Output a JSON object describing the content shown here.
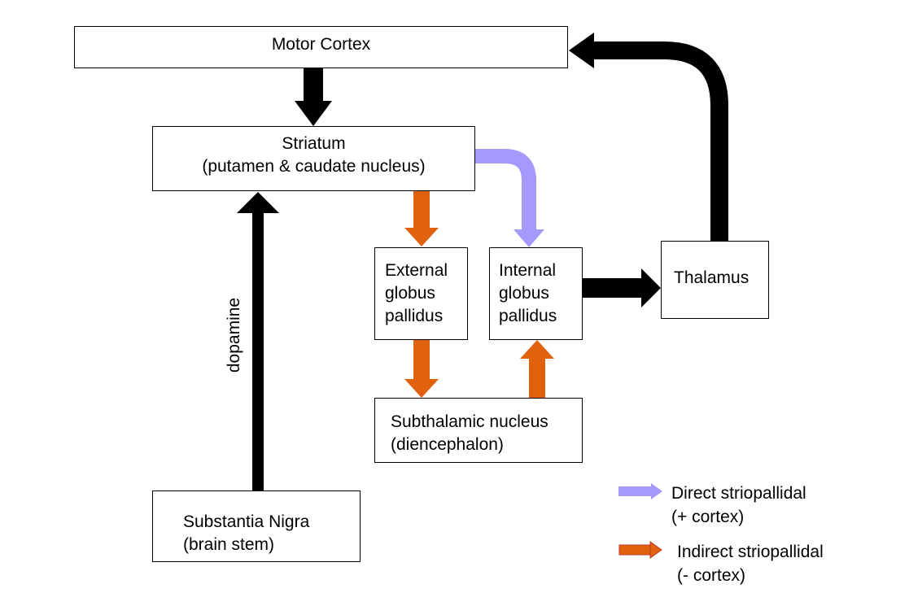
{
  "nodes": {
    "motor_cortex": {
      "label": "Motor Cortex"
    },
    "striatum": {
      "line1": "Striatum",
      "line2": "(putamen & caudate nucleus)"
    },
    "external_gp": {
      "line1": "External",
      "line2": "globus",
      "line3": "pallidus"
    },
    "internal_gp": {
      "line1": "Internal",
      "line2": "globus",
      "line3": "pallidus"
    },
    "thalamus": {
      "label": "Thalamus"
    },
    "subthalamic": {
      "line1": "Subthalamic nucleus",
      "line2": "(diencephalon)"
    },
    "substantia_nigra": {
      "line1": "Substantia Nigra",
      "line2": "(brain stem)"
    }
  },
  "edge_labels": {
    "dopamine": "dopamine"
  },
  "legend": {
    "direct": {
      "line1": "Direct striopallidal",
      "line2": "(+ cortex)",
      "color": "#a49afc"
    },
    "indirect": {
      "line1": "Indirect striopallidal",
      "line2": "(- cortex)",
      "color": "#e0620f"
    }
  },
  "colors": {
    "excitatory_path": "#000000",
    "direct": "#a49afc",
    "indirect": "#e0620f"
  }
}
